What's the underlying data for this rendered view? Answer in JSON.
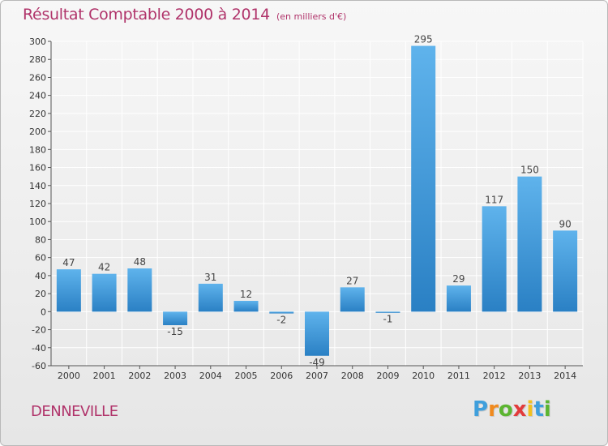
{
  "header": {
    "title": "Résultat Comptable 2000 à 2014",
    "subtitle": "(en milliers d'€)"
  },
  "footer": {
    "town": "DENNEVILLE",
    "logo_letters": [
      "P",
      "r",
      "o",
      "x",
      "i",
      "t",
      "i"
    ],
    "logo_colors": [
      "#3f9fdc",
      "#f08a1e",
      "#5cb531",
      "#e23b3b",
      "#f2c01e",
      "#3f9fdc",
      "#5cb531"
    ]
  },
  "colors": {
    "bar_light": "#5fb3ec",
    "bar_dark": "#2a80c4",
    "grid": "#ffffff",
    "text": "#b0336a"
  },
  "chart_data": {
    "type": "bar",
    "title": "Résultat Comptable 2000 à 2014",
    "subtitle": "(en milliers d'€)",
    "xlabel": "",
    "ylabel": "",
    "categories": [
      "2000",
      "2001",
      "2002",
      "2003",
      "2004",
      "2005",
      "2006",
      "2007",
      "2008",
      "2009",
      "2010",
      "2011",
      "2012",
      "2013",
      "2014"
    ],
    "values": [
      47,
      42,
      48,
      -15,
      31,
      12,
      -2,
      -49,
      27,
      -1,
      295,
      29,
      117,
      150,
      90
    ],
    "ylim": [
      -60,
      300
    ],
    "yticks": [
      -60,
      -40,
      -20,
      0,
      20,
      40,
      60,
      80,
      100,
      120,
      140,
      160,
      180,
      200,
      220,
      240,
      260,
      280,
      300
    ],
    "grid": true,
    "legend": "none"
  }
}
